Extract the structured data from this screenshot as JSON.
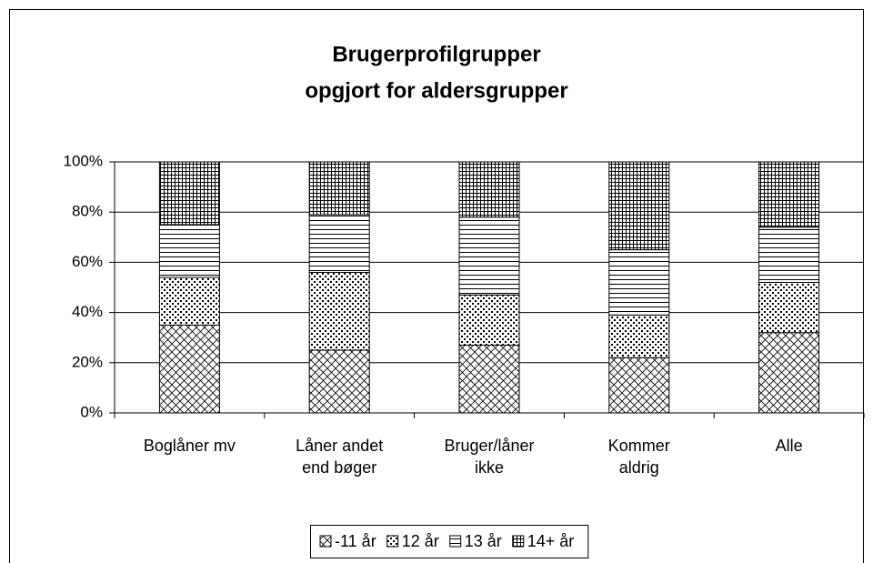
{
  "chart_data": {
    "type": "stacked-bar",
    "title": [
      "Brugerprofilgrupper",
      "opgjort for aldersgrupper"
    ],
    "categories": [
      "Boglåner mv",
      "Låner andet end bøger",
      "Bruger/låner ikke",
      "Kommer aldrig",
      "Alle"
    ],
    "series": [
      {
        "name": "-11 år",
        "color": "#000000",
        "pattern": "diagonal-cross",
        "values": [
          35,
          25,
          27,
          22,
          32
        ]
      },
      {
        "name": "12 år",
        "color": "#000000",
        "pattern": "dots",
        "values": [
          19,
          31,
          20,
          17,
          20
        ]
      },
      {
        "name": "13 år",
        "color": "#000000",
        "pattern": "horizontal",
        "values": [
          21,
          23,
          31,
          26,
          22
        ]
      },
      {
        "name": "14+ år",
        "color": "#000000",
        "pattern": "grid",
        "values": [
          25,
          21,
          22,
          35,
          26
        ]
      }
    ],
    "ylim": [
      0,
      100
    ],
    "yticks": [
      {
        "value": 0,
        "label": "0%"
      },
      {
        "value": 20,
        "label": "20%"
      },
      {
        "value": 40,
        "label": "40%"
      },
      {
        "value": 60,
        "label": "60%"
      },
      {
        "value": 80,
        "label": "80%"
      },
      {
        "value": 100,
        "label": "100%"
      }
    ],
    "grid": true,
    "legend": "bottom"
  }
}
